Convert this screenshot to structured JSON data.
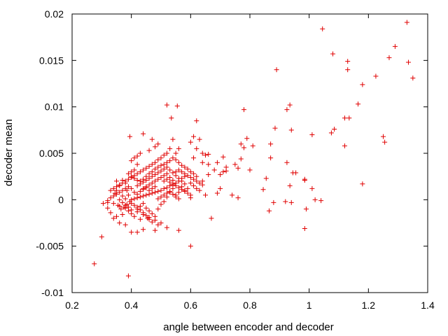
{
  "chart_data": {
    "type": "scatter",
    "xlabel": "angle between encoder and decoder",
    "ylabel": "decoder mean",
    "xlim": [
      0.2,
      1.4
    ],
    "ylim": [
      -0.01,
      0.02
    ],
    "xticks": [
      0.2,
      0.4,
      0.6,
      0.8,
      1.0,
      1.2,
      1.4
    ],
    "xtick_labels": [
      "0.2",
      "0.4",
      "0.6",
      "0.8",
      "1",
      "1.2",
      "1.4"
    ],
    "yticks": [
      -0.01,
      -0.005,
      0,
      0.005,
      0.01,
      0.015,
      0.02
    ],
    "ytick_labels": [
      "-0.01",
      "-0.005",
      "0",
      "0.005",
      "0.01",
      "0.015",
      "0.02"
    ],
    "marker": "plus",
    "marker_color": "#e00000",
    "grid": false,
    "points": [
      [
        0.275,
        -0.0069
      ],
      [
        0.3,
        -0.004
      ],
      [
        0.305,
        -0.0004
      ],
      [
        0.39,
        -0.0082
      ],
      [
        0.6,
        -0.005
      ],
      [
        0.89,
        0.014
      ],
      [
        1.045,
        0.0184
      ],
      [
        1.08,
        0.0157
      ],
      [
        1.13,
        0.0149
      ],
      [
        1.13,
        0.014
      ],
      [
        1.29,
        0.0165
      ],
      [
        1.33,
        0.0191
      ],
      [
        1.335,
        0.0148
      ],
      [
        1.35,
        0.0131
      ],
      [
        1.27,
        0.0153
      ],
      [
        1.225,
        0.0133
      ],
      [
        1.18,
        0.0124
      ],
      [
        1.165,
        0.0103
      ],
      [
        1.25,
        0.0068
      ],
      [
        1.255,
        0.0062
      ],
      [
        1.18,
        0.0017
      ],
      [
        0.52,
        0.0102
      ],
      [
        0.555,
        0.0101
      ],
      [
        0.535,
        0.0088
      ],
      [
        0.62,
        0.0085
      ],
      [
        0.78,
        0.0097
      ],
      [
        0.925,
        0.0097
      ],
      [
        0.935,
        0.0102
      ],
      [
        0.94,
        0.0075
      ],
      [
        1.01,
        0.007
      ],
      [
        0.885,
        0.0077
      ],
      [
        1.12,
        0.0088
      ],
      [
        1.135,
        0.0088
      ],
      [
        1.075,
        0.0072
      ],
      [
        1.085,
        0.0076
      ],
      [
        1.12,
        0.0058
      ],
      [
        0.955,
        0.0029
      ],
      [
        0.985,
        0.0021
      ],
      [
        0.985,
        0.0022
      ],
      [
        1.01,
        0.0012
      ],
      [
        1.02,
        0.0
      ],
      [
        1.04,
        -0.0001
      ],
      [
        0.99,
        -0.001
      ],
      [
        0.985,
        -0.0031
      ],
      [
        0.865,
        -0.0012
      ],
      [
        0.845,
        0.0011
      ],
      [
        0.88,
        -0.0003
      ],
      [
        0.92,
        -0.0002
      ],
      [
        0.925,
        0.004
      ],
      [
        0.935,
        0.0015
      ],
      [
        0.94,
        -0.0003
      ],
      [
        0.945,
        0.0029
      ],
      [
        0.87,
        0.006
      ],
      [
        0.87,
        0.0045
      ],
      [
        0.855,
        0.0023
      ],
      [
        0.8,
        0.0032
      ],
      [
        0.78,
        0.0056
      ],
      [
        0.77,
        0.006
      ],
      [
        0.79,
        0.0066
      ],
      [
        0.81,
        0.0058
      ],
      [
        0.77,
        0.0044
      ],
      [
        0.75,
        0.0038
      ],
      [
        0.76,
        0.0034
      ],
      [
        0.72,
        0.0035
      ],
      [
        0.71,
        0.0046
      ],
      [
        0.69,
        0.004
      ],
      [
        0.71,
        0.003
      ],
      [
        0.7,
        0.0027
      ],
      [
        0.68,
        0.0032
      ],
      [
        0.66,
        0.0038
      ],
      [
        0.65,
        0.0048
      ],
      [
        0.64,
        0.004
      ],
      [
        0.64,
        0.005
      ],
      [
        0.66,
        0.0049
      ],
      [
        0.66,
        0.0027
      ],
      [
        0.64,
        0.002
      ],
      [
        0.63,
        0.001
      ],
      [
        0.65,
        0.0005
      ],
      [
        0.69,
        0.0007
      ],
      [
        0.7,
        0.0012
      ],
      [
        0.74,
        0.0005
      ],
      [
        0.76,
        0.0002
      ],
      [
        0.67,
        -0.002
      ],
      [
        0.72,
        0.0031
      ],
      [
        0.56,
        -0.0033
      ],
      [
        0.52,
        -0.003
      ],
      [
        0.48,
        -0.0033
      ],
      [
        0.455,
        -0.002
      ],
      [
        0.43,
        -0.0021
      ],
      [
        0.42,
        -0.0035
      ],
      [
        0.4,
        -0.0035
      ],
      [
        0.44,
        -0.0032
      ],
      [
        0.35,
        -0.0018
      ],
      [
        0.36,
        -0.0025
      ],
      [
        0.34,
        -0.002
      ],
      [
        0.37,
        -0.0016
      ],
      [
        0.38,
        -0.0027
      ],
      [
        0.33,
        -0.0014
      ],
      [
        0.32,
        -0.0009
      ],
      [
        0.32,
        -0.0003
      ],
      [
        0.345,
        0.0007
      ],
      [
        0.35,
        0.001
      ],
      [
        0.35,
        0.002
      ],
      [
        0.36,
        0.0015
      ],
      [
        0.37,
        0.0021
      ],
      [
        0.38,
        0.0018
      ],
      [
        0.385,
        0.001
      ],
      [
        0.39,
        0.0005
      ],
      [
        0.395,
        0.0068
      ],
      [
        0.44,
        0.0071
      ],
      [
        0.48,
        0.0057
      ],
      [
        0.49,
        0.006
      ],
      [
        0.47,
        0.0065
      ],
      [
        0.46,
        0.0053
      ],
      [
        0.43,
        0.005
      ],
      [
        0.42,
        0.0047
      ],
      [
        0.41,
        0.0045
      ],
      [
        0.4,
        0.0042
      ],
      [
        0.42,
        0.0038
      ],
      [
        0.41,
        0.0032
      ],
      [
        0.4,
        0.003
      ],
      [
        0.39,
        0.0028
      ],
      [
        0.4,
        0.0025
      ],
      [
        0.41,
        0.0023
      ],
      [
        0.42,
        0.0021
      ],
      [
        0.43,
        0.002
      ],
      [
        0.44,
        0.0022
      ],
      [
        0.45,
        0.0025
      ],
      [
        0.46,
        0.0028
      ],
      [
        0.47,
        0.003
      ],
      [
        0.48,
        0.0033
      ],
      [
        0.49,
        0.0035
      ],
      [
        0.5,
        0.0037
      ],
      [
        0.51,
        0.0038
      ],
      [
        0.52,
        0.004
      ],
      [
        0.53,
        0.0042
      ],
      [
        0.54,
        0.0045
      ],
      [
        0.55,
        0.0043
      ],
      [
        0.56,
        0.004
      ],
      [
        0.57,
        0.0037
      ],
      [
        0.58,
        0.0035
      ],
      [
        0.59,
        0.0033
      ],
      [
        0.6,
        0.003
      ],
      [
        0.61,
        0.0028
      ],
      [
        0.62,
        0.0025
      ],
      [
        0.58,
        0.0025
      ],
      [
        0.57,
        0.0023
      ],
      [
        0.56,
        0.002
      ],
      [
        0.55,
        0.0018
      ],
      [
        0.54,
        0.0016
      ],
      [
        0.53,
        0.0015
      ],
      [
        0.52,
        0.0013
      ],
      [
        0.51,
        0.0012
      ],
      [
        0.5,
        0.001
      ],
      [
        0.49,
        0.0009
      ],
      [
        0.48,
        0.0008
      ],
      [
        0.47,
        0.0007
      ],
      [
        0.46,
        0.0006
      ],
      [
        0.45,
        0.0005
      ],
      [
        0.44,
        0.0004
      ],
      [
        0.43,
        0.0003
      ],
      [
        0.42,
        0.0002
      ],
      [
        0.41,
        0.0001
      ],
      [
        0.4,
        0.0
      ],
      [
        0.395,
        -0.0002
      ],
      [
        0.385,
        -0.0005
      ],
      [
        0.375,
        -0.0008
      ],
      [
        0.365,
        -0.001
      ],
      [
        0.38,
        0.0001
      ],
      [
        0.37,
        0.0004
      ],
      [
        0.36,
        0.0
      ],
      [
        0.355,
        -0.0006
      ],
      [
        0.39,
        -0.0012
      ],
      [
        0.4,
        -0.0015
      ],
      [
        0.41,
        -0.0018
      ],
      [
        0.42,
        -0.001
      ],
      [
        0.43,
        -0.0007
      ],
      [
        0.44,
        -0.0004
      ],
      [
        0.45,
        -0.0009
      ],
      [
        0.46,
        -0.0012
      ],
      [
        0.47,
        -0.0015
      ],
      [
        0.48,
        -0.0018
      ],
      [
        0.49,
        -0.001
      ],
      [
        0.5,
        -0.0005
      ],
      [
        0.51,
        -0.0002
      ],
      [
        0.52,
        0.0003
      ],
      [
        0.53,
        0.0008
      ],
      [
        0.54,
        0.0012
      ],
      [
        0.55,
        0.0005
      ],
      [
        0.56,
        0.0008
      ],
      [
        0.57,
        0.0014
      ],
      [
        0.58,
        0.0017
      ],
      [
        0.59,
        0.0012
      ],
      [
        0.6,
        0.0018
      ],
      [
        0.61,
        0.0015
      ],
      [
        0.62,
        0.0012
      ],
      [
        0.6,
        0.0005
      ],
      [
        0.61,
        0.0045
      ],
      [
        0.62,
        0.0055
      ],
      [
        0.6,
        0.0062
      ],
      [
        0.61,
        0.0068
      ],
      [
        0.63,
        0.0065
      ],
      [
        0.54,
        0.0065
      ],
      [
        0.56,
        0.0055
      ],
      [
        0.55,
        0.005
      ],
      [
        0.53,
        0.0055
      ],
      [
        0.52,
        0.005
      ],
      [
        0.51,
        0.0048
      ],
      [
        0.5,
        0.0045
      ],
      [
        0.49,
        0.0043
      ],
      [
        0.48,
        0.004
      ],
      [
        0.47,
        0.0038
      ],
      [
        0.46,
        0.0036
      ],
      [
        0.45,
        0.0034
      ],
      [
        0.44,
        0.0032
      ],
      [
        0.43,
        0.003
      ],
      [
        0.42,
        0.0028
      ],
      [
        0.41,
        0.0026
      ],
      [
        0.4,
        0.0024
      ],
      [
        0.39,
        0.0022
      ],
      [
        0.38,
        0.002
      ],
      [
        0.37,
        0.0018
      ],
      [
        0.36,
        0.0016
      ],
      [
        0.35,
        0.0014
      ],
      [
        0.34,
        0.0012
      ],
      [
        0.33,
        0.001
      ],
      [
        0.32,
        -0.0001
      ],
      [
        0.34,
        -0.0004
      ],
      [
        0.36,
        -0.0007
      ],
      [
        0.38,
        -0.0009
      ],
      [
        0.4,
        -0.0011
      ],
      [
        0.42,
        -0.0013
      ],
      [
        0.44,
        -0.0016
      ],
      [
        0.46,
        -0.0019
      ],
      [
        0.48,
        -0.0022
      ],
      [
        0.5,
        -0.0025
      ],
      [
        0.42,
        0.0015
      ],
      [
        0.43,
        0.0017
      ],
      [
        0.44,
        0.0019
      ],
      [
        0.45,
        0.0021
      ],
      [
        0.46,
        0.0023
      ],
      [
        0.47,
        0.0025
      ],
      [
        0.48,
        0.0027
      ],
      [
        0.49,
        0.0029
      ],
      [
        0.5,
        0.0031
      ],
      [
        0.51,
        0.0033
      ],
      [
        0.52,
        0.0035
      ],
      [
        0.53,
        0.0032
      ],
      [
        0.54,
        0.0029
      ],
      [
        0.55,
        0.0026
      ],
      [
        0.56,
        0.0023
      ],
      [
        0.57,
        0.002
      ],
      [
        0.58,
        0.001
      ],
      [
        0.59,
        0.0007
      ],
      [
        0.6,
        0.0002
      ],
      [
        0.44,
        0.0012
      ],
      [
        0.45,
        0.0014
      ],
      [
        0.46,
        0.0016
      ],
      [
        0.47,
        0.0018
      ],
      [
        0.48,
        0.002
      ],
      [
        0.49,
        0.0022
      ],
      [
        0.5,
        0.0024
      ],
      [
        0.51,
        0.0026
      ],
      [
        0.52,
        0.0028
      ],
      [
        0.53,
        0.0024
      ],
      [
        0.54,
        0.0021
      ],
      [
        0.55,
        0.003
      ],
      [
        0.56,
        0.0032
      ],
      [
        0.57,
        0.003
      ],
      [
        0.58,
        0.0028
      ],
      [
        0.59,
        0.0026
      ],
      [
        0.6,
        0.0024
      ],
      [
        0.61,
        0.0022
      ],
      [
        0.62,
        0.002
      ],
      [
        0.63,
        0.0018
      ],
      [
        0.64,
        0.0016
      ],
      [
        0.41,
        0.0008
      ],
      [
        0.42,
        0.0006
      ],
      [
        0.43,
        0.0009
      ],
      [
        0.44,
        0.0011
      ],
      [
        0.45,
        0.0013
      ],
      [
        0.46,
        0.001
      ],
      [
        0.47,
        0.0012
      ],
      [
        0.48,
        0.0014
      ],
      [
        0.4,
        0.0012
      ],
      [
        0.39,
        0.0014
      ],
      [
        0.38,
        0.0012
      ],
      [
        0.37,
        0.001
      ],
      [
        0.36,
        0.0008
      ],
      [
        0.35,
        0.0006
      ],
      [
        0.34,
        0.0004
      ],
      [
        0.33,
        0.0002
      ],
      [
        0.37,
        -0.0003
      ],
      [
        0.38,
        -0.0006
      ],
      [
        0.39,
        -0.0008
      ],
      [
        0.4,
        -0.0004
      ],
      [
        0.41,
        -0.0006
      ],
      [
        0.42,
        -0.0008
      ],
      [
        0.43,
        -0.0011
      ],
      [
        0.44,
        -0.0014
      ],
      [
        0.45,
        -0.0017
      ],
      [
        0.46,
        -0.0021
      ],
      [
        0.47,
        -0.0024
      ],
      [
        0.49,
        -0.0027
      ],
      [
        0.51,
        0.002
      ],
      [
        0.52,
        0.0022
      ],
      [
        0.53,
        0.0019
      ],
      [
        0.54,
        0.0017
      ],
      [
        0.55,
        0.0015
      ],
      [
        0.56,
        0.0013
      ],
      [
        0.57,
        0.0011
      ],
      [
        0.58,
        0.0009
      ],
      [
        0.49,
        0.0001
      ],
      [
        0.5,
        0.0003
      ],
      [
        0.51,
        0.0005
      ],
      [
        0.52,
        0.0007
      ],
      [
        0.53,
        0.0009
      ],
      [
        0.54,
        0.0006
      ],
      [
        0.55,
        0.0003
      ],
      [
        0.56,
        0.0001
      ]
    ]
  }
}
